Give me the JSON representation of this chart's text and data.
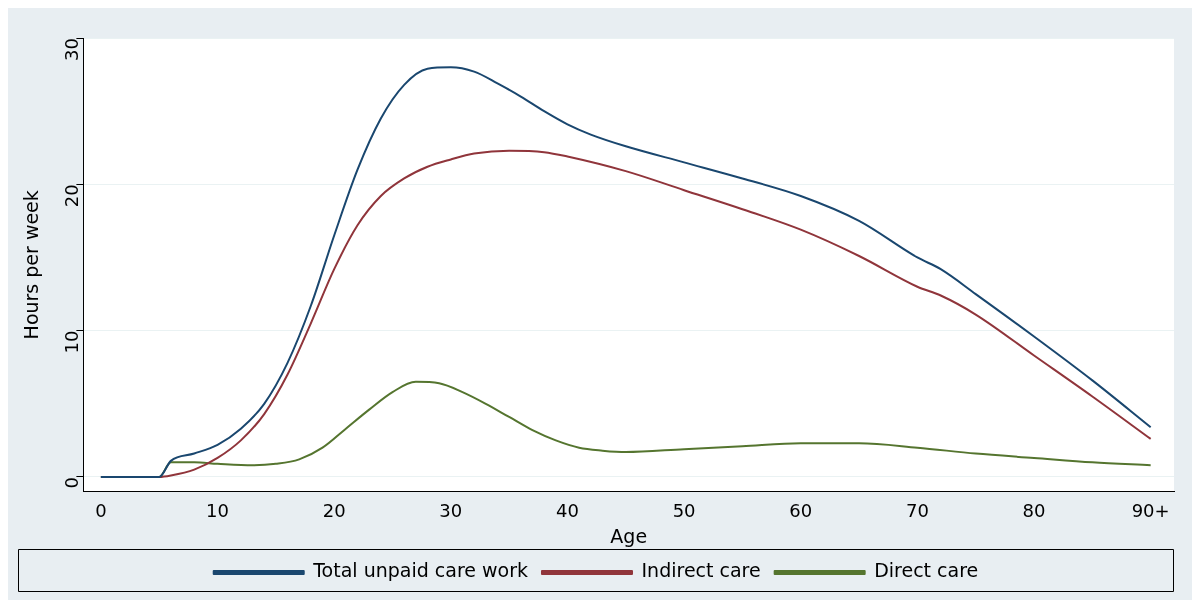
{
  "chart_data": {
    "type": "line",
    "xlabel": "Age",
    "ylabel": "Hours per week",
    "xlim": [
      -1.5,
      92
    ],
    "ylim": [
      -1,
      30
    ],
    "xticks": [
      0,
      10,
      20,
      30,
      40,
      50,
      60,
      70,
      80,
      {
        "value": 90,
        "label": "90+"
      }
    ],
    "yticks": [
      0,
      10,
      20,
      30
    ],
    "grid": "y",
    "legend": "bottom",
    "marker": "none",
    "line_style": "solid",
    "series": [
      {
        "name": "Total unpaid care work",
        "color": "#1a476f",
        "x": [
          0,
          5,
          6,
          8,
          10,
          12,
          14,
          16,
          18,
          20,
          22,
          24,
          26,
          28,
          30,
          32,
          34,
          36,
          38,
          40,
          42,
          45,
          50,
          55,
          60,
          65,
          70,
          72,
          75,
          80,
          85,
          90
        ],
        "values": [
          0,
          0,
          1.1,
          1.6,
          2.2,
          3.3,
          5.0,
          7.8,
          11.7,
          16.5,
          21.0,
          24.5,
          26.8,
          27.9,
          28.0,
          27.7,
          26.9,
          26.0,
          25.0,
          24.1,
          23.4,
          22.6,
          21.5,
          20.4,
          19.2,
          17.5,
          15.0,
          14.2,
          12.5,
          9.6,
          6.6,
          3.4
        ]
      },
      {
        "name": "Indirect care",
        "color": "#90353b",
        "x": [
          0,
          5,
          6,
          8,
          10,
          12,
          14,
          16,
          18,
          20,
          22,
          24,
          26,
          28,
          30,
          32,
          35,
          38,
          40,
          45,
          50,
          55,
          60,
          65,
          70,
          72,
          75,
          80,
          85,
          90
        ],
        "values": [
          0,
          0,
          0.1,
          0.5,
          1.3,
          2.5,
          4.3,
          7.0,
          10.5,
          14.2,
          17.2,
          19.2,
          20.4,
          21.2,
          21.7,
          22.1,
          22.3,
          22.2,
          21.9,
          20.9,
          19.6,
          18.3,
          16.9,
          15.1,
          13.0,
          12.4,
          11.1,
          8.3,
          5.5,
          2.6
        ]
      },
      {
        "name": "Direct care",
        "color": "#55752f",
        "x": [
          0,
          5,
          6,
          8,
          10,
          13,
          15,
          17,
          19,
          21,
          23,
          25,
          27,
          29,
          31,
          33,
          35,
          37,
          39,
          41,
          43,
          45,
          50,
          55,
          60,
          65,
          70,
          75,
          80,
          85,
          90
        ],
        "values": [
          0,
          0,
          1.0,
          1.0,
          0.9,
          0.8,
          0.9,
          1.2,
          2.0,
          3.3,
          4.6,
          5.8,
          6.5,
          6.4,
          5.8,
          5.0,
          4.1,
          3.2,
          2.5,
          2.0,
          1.8,
          1.7,
          1.9,
          2.1,
          2.3,
          2.3,
          2.0,
          1.6,
          1.3,
          1.0,
          0.8
        ]
      }
    ]
  }
}
